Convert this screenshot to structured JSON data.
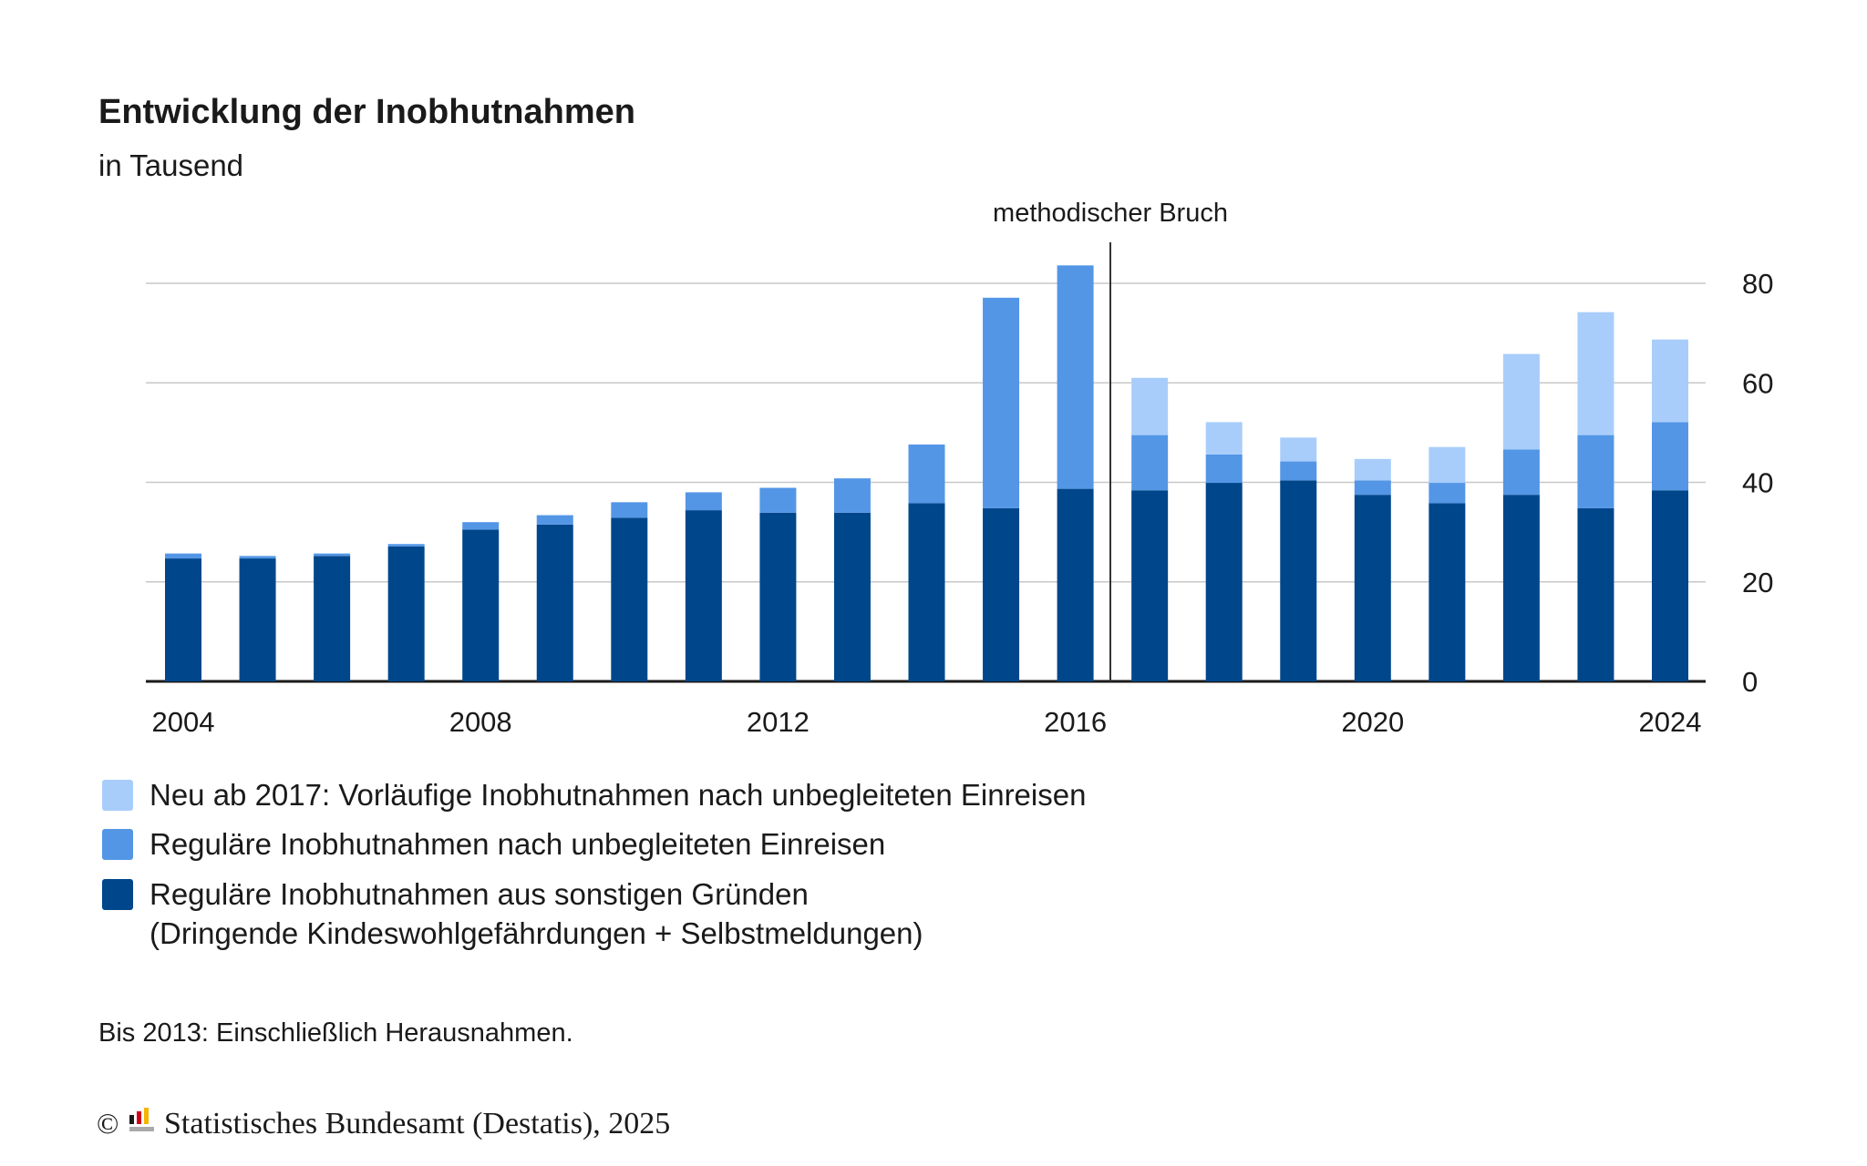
{
  "chart_data": {
    "type": "bar",
    "stacked": true,
    "title": "Entwicklung der Inobhutnahmen",
    "subtitle": "in Tausend",
    "xlabel": "",
    "ylabel": "",
    "ylim": [
      0,
      88
    ],
    "yticks": [
      "0",
      "20",
      "40",
      "60",
      "80"
    ],
    "ytick_values": [
      0,
      20,
      40,
      60,
      80
    ],
    "xtick_labels": [
      "2004",
      "2008",
      "2012",
      "2016",
      "2020",
      "2024"
    ],
    "grid": true,
    "legend_position": "bottom-left",
    "annotation": "methodischer Bruch",
    "categories": [
      "2004",
      "2005",
      "2006",
      "2007",
      "2008",
      "2009",
      "2010",
      "2011",
      "2012",
      "2013",
      "2014",
      "2015",
      "2016",
      "2017",
      "2018",
      "2019",
      "2020",
      "2021",
      "2022",
      "2023",
      "2024"
    ],
    "series": [
      {
        "name": "Reguläre Inobhutnahmen aus sonstigen Gründen",
        "name_line2": "(Dringende Kindeswohlgefährdungen + Selbstmeldungen)",
        "color": "#00468b",
        "values": [
          24.7,
          24.7,
          25.2,
          27.1,
          30.5,
          31.5,
          32.9,
          34.4,
          33.9,
          33.9,
          35.8,
          34.8,
          38.7,
          38.4,
          39.9,
          40.4,
          37.5,
          35.8,
          37.5,
          34.8,
          38.4
        ]
      },
      {
        "name": "Reguläre Inobhutnahmen nach unbegleiteten Einreisen",
        "color": "#5496e6",
        "values": [
          1.0,
          0.5,
          0.5,
          0.5,
          1.5,
          1.9,
          3.1,
          3.6,
          5.0,
          6.9,
          11.8,
          42.3,
          44.9,
          11.1,
          5.7,
          3.8,
          2.9,
          4.1,
          9.1,
          14.7,
          13.7
        ]
      },
      {
        "name": "Neu ab 2017: Vorläufige Inobhutnahmen nach unbegleiteten Einreisen",
        "color": "#a8cdfb",
        "values": [
          0,
          0,
          0,
          0,
          0,
          0,
          0,
          0,
          0,
          0,
          0,
          0,
          0,
          11.5,
          6.5,
          4.8,
          4.3,
          7.2,
          19.2,
          24.7,
          16.6
        ]
      }
    ]
  },
  "footnote": "Bis 2013: Einschließlich Herausnahmen.",
  "source": "Statistisches Bundesamt (Destatis), 2025",
  "copyright_symbol": "©"
}
